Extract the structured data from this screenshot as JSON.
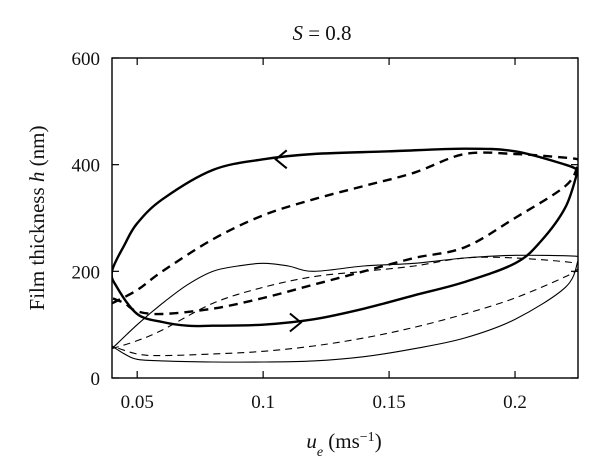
{
  "chart_data": {
    "type": "line",
    "title": "S = 0.8",
    "xlabel": "u_e (ms^-1)",
    "ylabel": "Film thickness h (nm)",
    "xlim": [
      0.04,
      0.225
    ],
    "ylim": [
      0,
      600
    ],
    "xticks": [
      {
        "value": 0.05,
        "label": "0.05"
      },
      {
        "value": 0.1,
        "label": "0.1"
      },
      {
        "value": 0.15,
        "label": "0.15"
      },
      {
        "value": 0.2,
        "label": "0.2"
      }
    ],
    "yticks": [
      {
        "value": 0,
        "label": "0"
      },
      {
        "value": 200,
        "label": "200"
      },
      {
        "value": 400,
        "label": "400"
      },
      {
        "value": 600,
        "label": "600"
      }
    ],
    "grid": false,
    "series": [
      {
        "style": "thick-solid",
        "x": [
          0.225,
          0.22,
          0.2,
          0.18,
          0.15,
          0.12,
          0.1,
          0.08,
          0.06,
          0.05,
          0.045,
          0.04,
          0.042,
          0.05,
          0.06,
          0.07,
          0.08,
          0.1,
          0.12,
          0.14,
          0.16,
          0.18,
          0.2,
          0.21,
          0.22,
          0.225
        ],
        "y": [
          390,
          400,
          425,
          430,
          425,
          420,
          410,
          390,
          335,
          290,
          250,
          200,
          170,
          120,
          105,
          98,
          98,
          100,
          110,
          130,
          155,
          180,
          215,
          255,
          320,
          390
        ]
      },
      {
        "style": "thick-dashed",
        "x": [
          0.04,
          0.05,
          0.06,
          0.08,
          0.1,
          0.12,
          0.14,
          0.16,
          0.18,
          0.2,
          0.215,
          0.225,
          0.225,
          0.22,
          0.2,
          0.18,
          0.16,
          0.14,
          0.12,
          0.1,
          0.08,
          0.06,
          0.05,
          0.045,
          0.04
        ],
        "y": [
          140,
          165,
          200,
          260,
          305,
          335,
          360,
          385,
          420,
          420,
          415,
          410,
          400,
          360,
          300,
          245,
          225,
          200,
          175,
          150,
          130,
          120,
          125,
          140,
          150
        ]
      },
      {
        "style": "thin-solid",
        "x": [
          0.04,
          0.05,
          0.06,
          0.07,
          0.08,
          0.09,
          0.1,
          0.11,
          0.12,
          0.14,
          0.16,
          0.18,
          0.2,
          0.225,
          0.225,
          0.22,
          0.2,
          0.18,
          0.16,
          0.14,
          0.12,
          0.1,
          0.08,
          0.06,
          0.05,
          0.045,
          0.04
        ],
        "y": [
          55,
          100,
          140,
          175,
          200,
          210,
          215,
          210,
          200,
          210,
          215,
          225,
          230,
          228,
          220,
          170,
          110,
          75,
          55,
          40,
          32,
          30,
          30,
          32,
          35,
          45,
          60
        ]
      },
      {
        "style": "thin-dashed",
        "x": [
          0.04,
          0.05,
          0.06,
          0.08,
          0.1,
          0.12,
          0.14,
          0.16,
          0.18,
          0.2,
          0.225,
          0.225,
          0.22,
          0.2,
          0.18,
          0.16,
          0.14,
          0.12,
          0.1,
          0.08,
          0.06,
          0.05,
          0.04
        ],
        "y": [
          55,
          70,
          90,
          140,
          170,
          190,
          200,
          210,
          225,
          225,
          215,
          205,
          190,
          150,
          120,
          95,
          75,
          60,
          50,
          45,
          42,
          45,
          60
        ]
      }
    ],
    "arrows": [
      {
        "x": 0.105,
        "y": 410,
        "direction": "left"
      },
      {
        "x": 0.115,
        "y": 104,
        "direction": "right"
      }
    ]
  }
}
